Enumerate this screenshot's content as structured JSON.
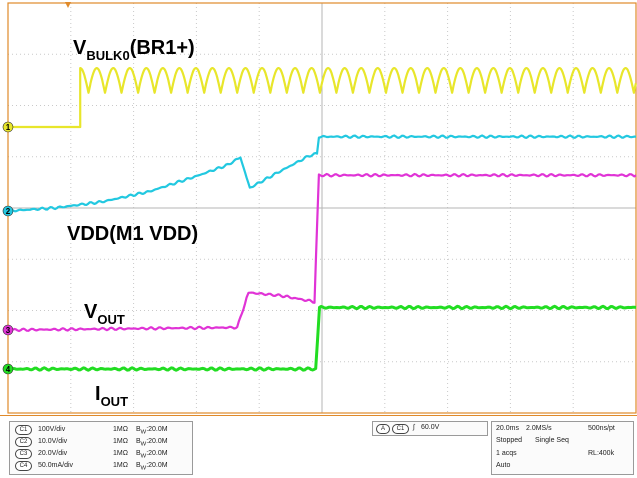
{
  "chart_data": {
    "type": "line",
    "title": "",
    "xlabel": "",
    "ylabel": "",
    "grid": true,
    "x_divisions": 10,
    "y_divisions": 8,
    "series": [
      {
        "name": "V",
        "name_sub": "BULK0",
        "name_suffix": "(BR1+)",
        "channel": "1",
        "color": "#e8e62b",
        "ground_div": 1,
        "baseline_until_div": 1.15,
        "rectified_peak_div": 1.15,
        "rectified_cycles_per_div": 3.8,
        "ends_div": 10
      },
      {
        "name": "VDD(M1 VDD)",
        "channel": "2",
        "color": "#22c8e0",
        "ground_div": 0,
        "points": [
          [
            0,
            0
          ],
          [
            0.25,
            0.02
          ],
          [
            0.75,
            0.06
          ],
          [
            1.5,
            0.18
          ],
          [
            2.25,
            0.38
          ],
          [
            3.0,
            0.68
          ],
          [
            3.5,
            0.9
          ],
          [
            3.7,
            1.05
          ],
          [
            3.85,
            0.45
          ],
          [
            4.25,
            0.72
          ],
          [
            4.8,
            1.08
          ],
          [
            4.92,
            1.12
          ],
          [
            4.95,
            1.45
          ],
          [
            10,
            1.45
          ]
        ]
      },
      {
        "name": "V",
        "name_sub": "OUT",
        "channel": "3",
        "color": "#e033d6",
        "ground_div": 0,
        "points": [
          [
            0,
            0
          ],
          [
            3.65,
            0.05
          ],
          [
            3.8,
            0.62
          ],
          [
            3.83,
            0.73
          ],
          [
            4.35,
            0.67
          ],
          [
            4.88,
            0.55
          ],
          [
            4.95,
            3.02
          ],
          [
            10,
            3.02
          ]
        ]
      },
      {
        "name": "I",
        "name_sub": "OUT",
        "channel": "4",
        "color": "#22dd22",
        "ground_div": 0,
        "points": [
          [
            0,
            0
          ],
          [
            4.9,
            0
          ],
          [
            4.96,
            1.2
          ],
          [
            10,
            1.2
          ]
        ]
      }
    ]
  },
  "readout": {
    "channels": [
      {
        "id": "C1",
        "scale": "100V/div",
        "impedance": "1MΩ",
        "bw_label": "B",
        "bw_sub": "W",
        "bw_value": ":20.0M"
      },
      {
        "id": "C2",
        "scale": "10.0V/div",
        "impedance": "1MΩ",
        "bw_label": "B",
        "bw_sub": "W",
        "bw_value": ":20.0M"
      },
      {
        "id": "C3",
        "scale": "20.0V/div",
        "impedance": "1MΩ",
        "bw_label": "B",
        "bw_sub": "W",
        "bw_value": ":20.0M"
      },
      {
        "id": "C4",
        "scale": "50.0mA/div",
        "impedance": "1MΩ",
        "bw_label": "B",
        "bw_sub": "W",
        "bw_value": ":20.0M"
      }
    ],
    "trigger": {
      "mode": "A",
      "source": "C1",
      "slope": "∫",
      "level": "60.0V"
    },
    "acquisition": {
      "timebase": "20.0ms",
      "sample_rate": "2.0MS/s",
      "resolution": "500ns/pt",
      "state": "Stopped",
      "seq": "Single Seq",
      "acqs": "1 acqs",
      "record_length": "RL:400k",
      "trigger_mode": "Auto"
    }
  }
}
